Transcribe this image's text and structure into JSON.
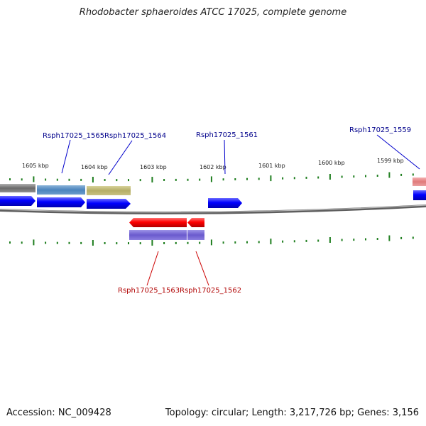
{
  "title": "Rhodobacter sphaeroides ATCC 17025, complete genome",
  "accession_text": "Accession: NC_009428",
  "summary_text": "Topology: circular; Length: 3,217,726 bp; Genes: 3,156",
  "scale": {
    "labels": [
      "1605 kbp",
      "1604 kbp",
      "1603 kbp",
      "1602 kbp",
      "1601 kbp",
      "1600 kbp",
      "1599 kbp"
    ]
  },
  "gene_labels": {
    "forward": [
      "Rsph17025_1565",
      "Rsph17025_1564",
      "Rsph17025_1561",
      "Rsph17025_1559"
    ],
    "reverse": [
      "Rsph17025_1563",
      "Rsph17025_1562"
    ]
  },
  "colors": {
    "forward_label": "#00008b",
    "reverse_label": "#b00000",
    "forward_cds": "#0000ff",
    "reverse_cds": "#ff0000",
    "tick": "#1e7e1e",
    "backbone": "#808080"
  }
}
